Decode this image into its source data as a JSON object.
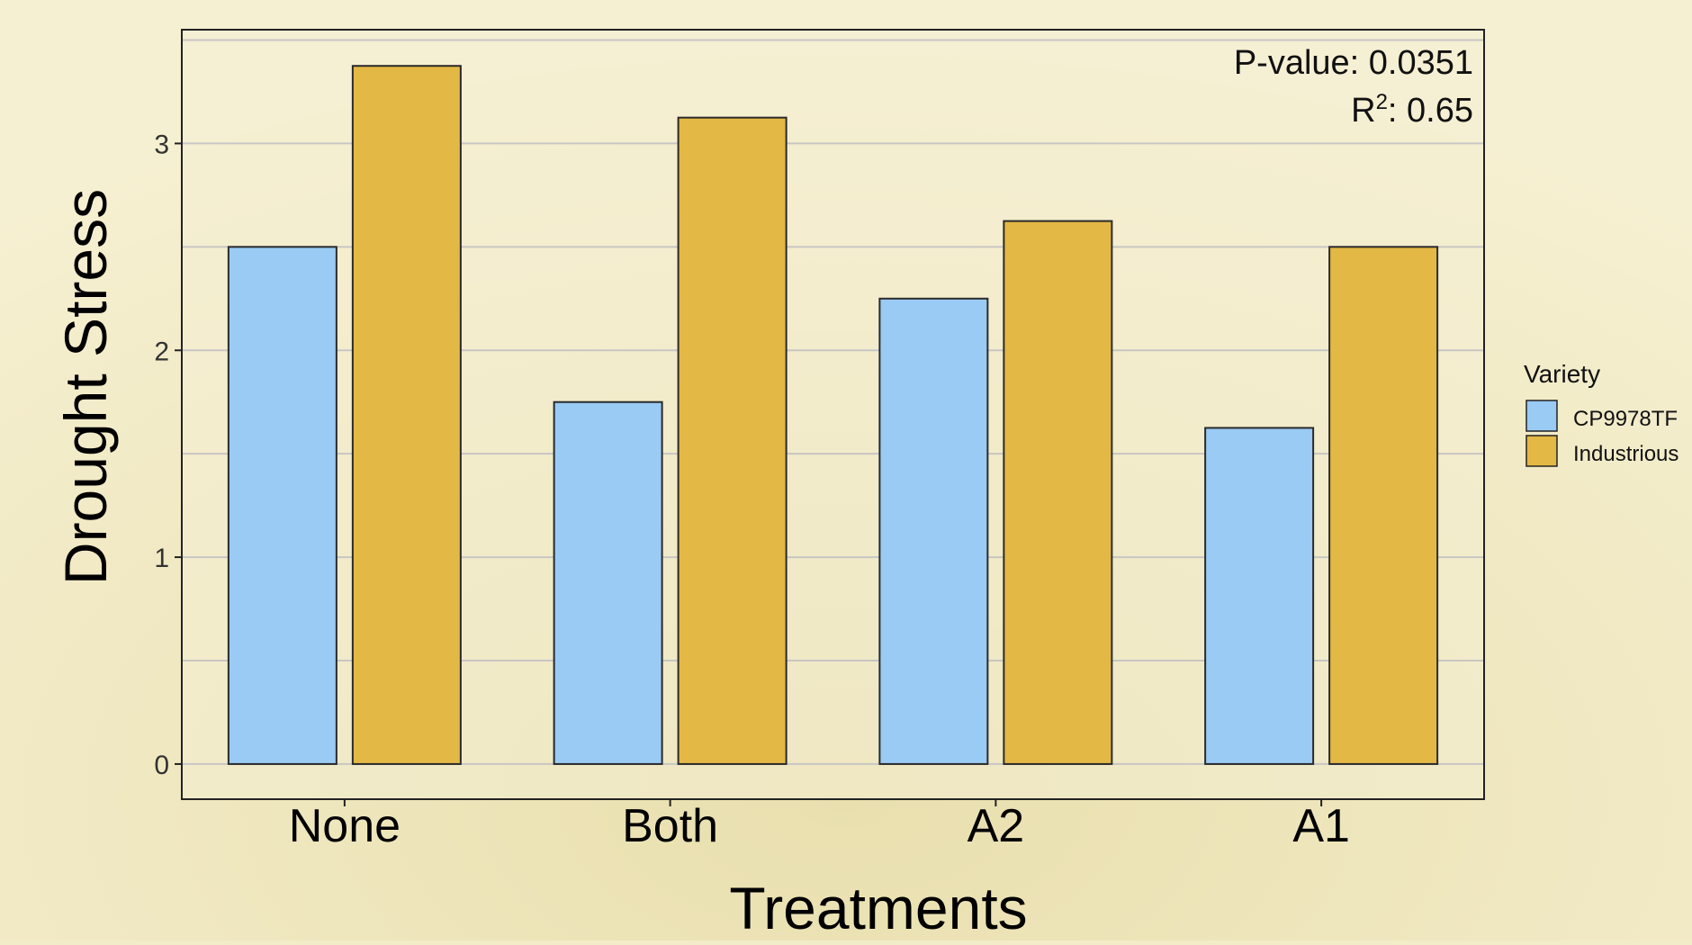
{
  "chart_data": {
    "type": "bar",
    "title": "",
    "xlabel": "Treatments",
    "ylabel": "Drought Stress",
    "categories": [
      "None",
      "Both",
      "A2",
      "A1"
    ],
    "series": [
      {
        "name": "CP9978TF",
        "values": [
          2.5,
          1.75,
          2.25,
          1.625
        ]
      },
      {
        "name": "Industrious",
        "values": [
          3.375,
          3.125,
          2.625,
          2.5
        ]
      }
    ],
    "ylim": [
      -0.17,
      3.55
    ],
    "yticks": [
      0,
      1,
      2,
      3
    ],
    "grid": true,
    "legend": {
      "title": "Variety",
      "placement": "right"
    },
    "annotations": {
      "pvalue": "P-value: 0.0351",
      "r2_prefix": "R",
      "r2_sup": "2",
      "r2_value": ": 0.65"
    },
    "colors": {
      "CP9978TF": "#99cbf4",
      "Industrious": "#e3b845",
      "grid": "#c8c6c3",
      "axis": "#222222",
      "background": "#f3ecc8"
    }
  }
}
